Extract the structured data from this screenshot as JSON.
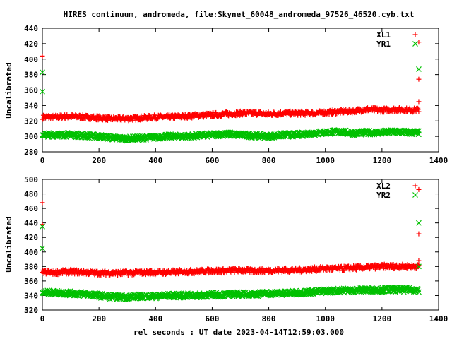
{
  "figure": {
    "title": "HIRES continuum, andromeda, file:Skynet_60048_andromeda_97526_46520.cyb.txt",
    "xlabel": "rel seconds : UT date 2023-04-14T12:59:03.000"
  },
  "colors": {
    "red": "#ff0000",
    "green": "#00c000"
  },
  "chart_data": [
    {
      "type": "scatter",
      "ylabel": "Uncalibrated",
      "xlim": [
        0,
        1400
      ],
      "ylim": [
        280,
        440
      ],
      "xticks": [
        0,
        200,
        400,
        600,
        800,
        1000,
        1200,
        1400
      ],
      "yticks": [
        280,
        300,
        320,
        340,
        360,
        380,
        400,
        420,
        440
      ],
      "grid": false,
      "legend_position": "top-right",
      "series": [
        {
          "name": "XL1",
          "marker": "plus",
          "color": "#ff0000",
          "x": [
            0,
            0,
            50,
            100,
            150,
            200,
            250,
            300,
            350,
            400,
            450,
            500,
            550,
            600,
            650,
            700,
            750,
            800,
            850,
            900,
            950,
            1000,
            1050,
            1100,
            1150,
            1200,
            1250,
            1300,
            1330,
            1330,
            1330
          ],
          "y": [
            404,
            322,
            325,
            326,
            325,
            324,
            323,
            323,
            324,
            325,
            325,
            326,
            327,
            328,
            329,
            330,
            330,
            329,
            330,
            330,
            330,
            331,
            332,
            333,
            335,
            334,
            335,
            334,
            422,
            374,
            345
          ]
        },
        {
          "name": "YR1",
          "marker": "cross",
          "color": "#00c000",
          "x": [
            0,
            0,
            0,
            50,
            100,
            150,
            200,
            250,
            300,
            350,
            400,
            450,
            500,
            550,
            600,
            650,
            700,
            750,
            800,
            850,
            900,
            950,
            1000,
            1050,
            1100,
            1150,
            1200,
            1250,
            1300,
            1330,
            1330
          ],
          "y": [
            383,
            358,
            302,
            302,
            302,
            301,
            300,
            298,
            297,
            298,
            299,
            300,
            300,
            301,
            302,
            303,
            302,
            301,
            300,
            302,
            302,
            304,
            305,
            306,
            304,
            305,
            305,
            306,
            305,
            387,
            307
          ]
        }
      ]
    },
    {
      "type": "scatter",
      "ylabel": "Uncalibrated",
      "xlim": [
        0,
        1400
      ],
      "ylim": [
        320,
        500
      ],
      "xticks": [
        0,
        200,
        400,
        600,
        800,
        1000,
        1200,
        1400
      ],
      "yticks": [
        320,
        340,
        360,
        380,
        400,
        420,
        440,
        460,
        480,
        500
      ],
      "grid": false,
      "legend_position": "top-right",
      "series": [
        {
          "name": "XL2",
          "marker": "plus",
          "color": "#ff0000",
          "x": [
            0,
            0,
            0,
            50,
            100,
            150,
            200,
            250,
            300,
            350,
            400,
            450,
            500,
            550,
            600,
            650,
            700,
            750,
            800,
            850,
            900,
            950,
            1000,
            1050,
            1100,
            1150,
            1200,
            1250,
            1300,
            1330,
            1330,
            1330
          ],
          "y": [
            468,
            438,
            372,
            372,
            373,
            372,
            371,
            371,
            371,
            372,
            372,
            372,
            373,
            373,
            374,
            374,
            375,
            374,
            374,
            375,
            375,
            376,
            377,
            377,
            378,
            379,
            380,
            380,
            380,
            486,
            425,
            388
          ]
        },
        {
          "name": "YR2",
          "marker": "cross",
          "color": "#00c000",
          "x": [
            0,
            0,
            0,
            50,
            100,
            150,
            200,
            250,
            300,
            350,
            400,
            450,
            500,
            550,
            600,
            650,
            700,
            750,
            800,
            850,
            900,
            950,
            1000,
            1050,
            1100,
            1150,
            1200,
            1250,
            1300,
            1330,
            1330
          ],
          "y": [
            435,
            405,
            344,
            344,
            343,
            342,
            340,
            338,
            338,
            339,
            339,
            340,
            340,
            340,
            341,
            341,
            342,
            342,
            343,
            343,
            344,
            345,
            346,
            347,
            347,
            348,
            348,
            348,
            348,
            440,
            380
          ]
        }
      ]
    }
  ]
}
